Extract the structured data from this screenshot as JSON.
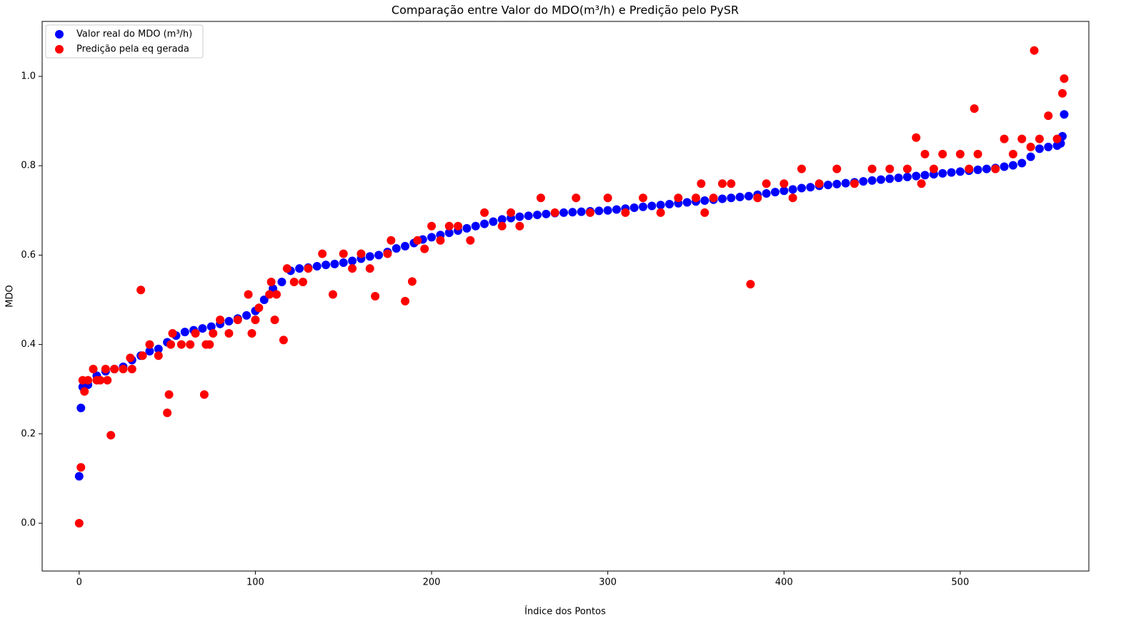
{
  "chart_data": {
    "type": "scatter",
    "title": "Comparação entre Valor do MDO(m³/h) e Predição pelo PySR",
    "x_label": "Índice dos Pontos",
    "y_label": "MDO",
    "xlim": [
      -21,
      573
    ],
    "ylim": [
      -0.107,
      1.123
    ],
    "xticks": [
      0,
      100,
      200,
      300,
      400,
      500
    ],
    "yticks": [
      {
        "value": 0,
        "label": "0.0"
      },
      0.2,
      0.4,
      0.6,
      0.8,
      {
        "value": 1,
        "label": "1.0"
      }
    ],
    "legend": "upper left",
    "series": [
      {
        "name": "Valor real do MDO (m³/h)",
        "color": "#0000ff",
        "x": [
          0,
          1,
          2,
          5,
          10,
          15,
          20,
          25,
          30,
          35,
          40,
          45,
          50,
          55,
          60,
          65,
          70,
          75,
          80,
          85,
          90,
          95,
          100,
          105,
          110,
          115,
          120,
          125,
          130,
          135,
          140,
          145,
          150,
          155,
          160,
          165,
          170,
          175,
          180,
          185,
          190,
          195,
          200,
          205,
          210,
          215,
          220,
          225,
          230,
          235,
          240,
          245,
          250,
          255,
          260,
          265,
          270,
          275,
          280,
          285,
          290,
          295,
          300,
          305,
          310,
          315,
          320,
          325,
          330,
          335,
          340,
          345,
          350,
          355,
          360,
          365,
          370,
          375,
          380,
          385,
          390,
          395,
          400,
          405,
          410,
          415,
          420,
          425,
          430,
          435,
          440,
          445,
          450,
          455,
          460,
          465,
          470,
          475,
          480,
          485,
          490,
          495,
          500,
          505,
          510,
          515,
          520,
          525,
          530,
          535,
          540,
          545,
          550,
          555,
          557,
          558,
          559
        ],
        "values": [
          0.105,
          0.258,
          0.305,
          0.31,
          0.33,
          0.34,
          0.345,
          0.35,
          0.365,
          0.375,
          0.385,
          0.39,
          0.405,
          0.42,
          0.428,
          0.432,
          0.436,
          0.44,
          0.446,
          0.452,
          0.458,
          0.465,
          0.475,
          0.5,
          0.525,
          0.54,
          0.565,
          0.57,
          0.572,
          0.575,
          0.578,
          0.58,
          0.583,
          0.587,
          0.592,
          0.597,
          0.6,
          0.607,
          0.615,
          0.62,
          0.627,
          0.635,
          0.64,
          0.645,
          0.65,
          0.655,
          0.66,
          0.665,
          0.67,
          0.675,
          0.68,
          0.683,
          0.686,
          0.688,
          0.69,
          0.692,
          0.694,
          0.695,
          0.696,
          0.697,
          0.698,
          0.699,
          0.7,
          0.702,
          0.704,
          0.706,
          0.708,
          0.71,
          0.712,
          0.714,
          0.716,
          0.718,
          0.72,
          0.722,
          0.724,
          0.726,
          0.728,
          0.73,
          0.732,
          0.735,
          0.738,
          0.741,
          0.744,
          0.747,
          0.75,
          0.752,
          0.755,
          0.757,
          0.759,
          0.761,
          0.763,
          0.765,
          0.767,
          0.769,
          0.771,
          0.773,
          0.775,
          0.777,
          0.779,
          0.781,
          0.783,
          0.785,
          0.787,
          0.789,
          0.791,
          0.793,
          0.795,
          0.798,
          0.801,
          0.806,
          0.82,
          0.838,
          0.842,
          0.845,
          0.85,
          0.866,
          0.915
        ]
      },
      {
        "name": "Predição pela eq gerada",
        "color": "#ff0000",
        "x": [
          0,
          1,
          2,
          3,
          5,
          8,
          10,
          12,
          15,
          16,
          18,
          20,
          25,
          29,
          30,
          35,
          36,
          40,
          45,
          50,
          51,
          52,
          53,
          58,
          63,
          66,
          71,
          72,
          74,
          76,
          80,
          85,
          90,
          96,
          98,
          100,
          102,
          108,
          109,
          111,
          112,
          116,
          118,
          122,
          127,
          130,
          138,
          144,
          150,
          155,
          160,
          165,
          168,
          175,
          177,
          185,
          189,
          192,
          196,
          200,
          205,
          210,
          215,
          222,
          230,
          240,
          245,
          250,
          262,
          270,
          282,
          290,
          300,
          310,
          320,
          330,
          340,
          350,
          353,
          355,
          360,
          365,
          370,
          381,
          385,
          390,
          400,
          405,
          410,
          420,
          430,
          440,
          450,
          460,
          470,
          475,
          478,
          480,
          485,
          490,
          500,
          505,
          508,
          510,
          520,
          525,
          530,
          535,
          540,
          542,
          545,
          550,
          555,
          558,
          559
        ],
        "values": [
          0.0,
          0.125,
          0.32,
          0.295,
          0.32,
          0.345,
          0.32,
          0.32,
          0.345,
          0.32,
          0.197,
          0.345,
          0.345,
          0.37,
          0.345,
          0.522,
          0.375,
          0.4,
          0.375,
          0.247,
          0.288,
          0.4,
          0.425,
          0.4,
          0.4,
          0.425,
          0.288,
          0.4,
          0.4,
          0.425,
          0.455,
          0.425,
          0.455,
          0.512,
          0.425,
          0.455,
          0.482,
          0.512,
          0.54,
          0.455,
          0.512,
          0.41,
          0.57,
          0.54,
          0.54,
          0.57,
          0.603,
          0.512,
          0.603,
          0.57,
          0.603,
          0.57,
          0.508,
          0.603,
          0.633,
          0.497,
          0.541,
          0.633,
          0.614,
          0.665,
          0.633,
          0.665,
          0.665,
          0.633,
          0.695,
          0.665,
          0.695,
          0.665,
          0.728,
          0.695,
          0.728,
          0.695,
          0.728,
          0.695,
          0.728,
          0.695,
          0.728,
          0.728,
          0.76,
          0.695,
          0.728,
          0.76,
          0.76,
          0.535,
          0.728,
          0.76,
          0.76,
          0.728,
          0.793,
          0.76,
          0.793,
          0.76,
          0.793,
          0.793,
          0.793,
          0.863,
          0.76,
          0.826,
          0.793,
          0.826,
          0.826,
          0.793,
          0.928,
          0.826,
          0.793,
          0.86,
          0.826,
          0.86,
          0.842,
          1.058,
          0.86,
          0.912,
          0.86,
          0.962,
          0.995
        ]
      }
    ]
  }
}
